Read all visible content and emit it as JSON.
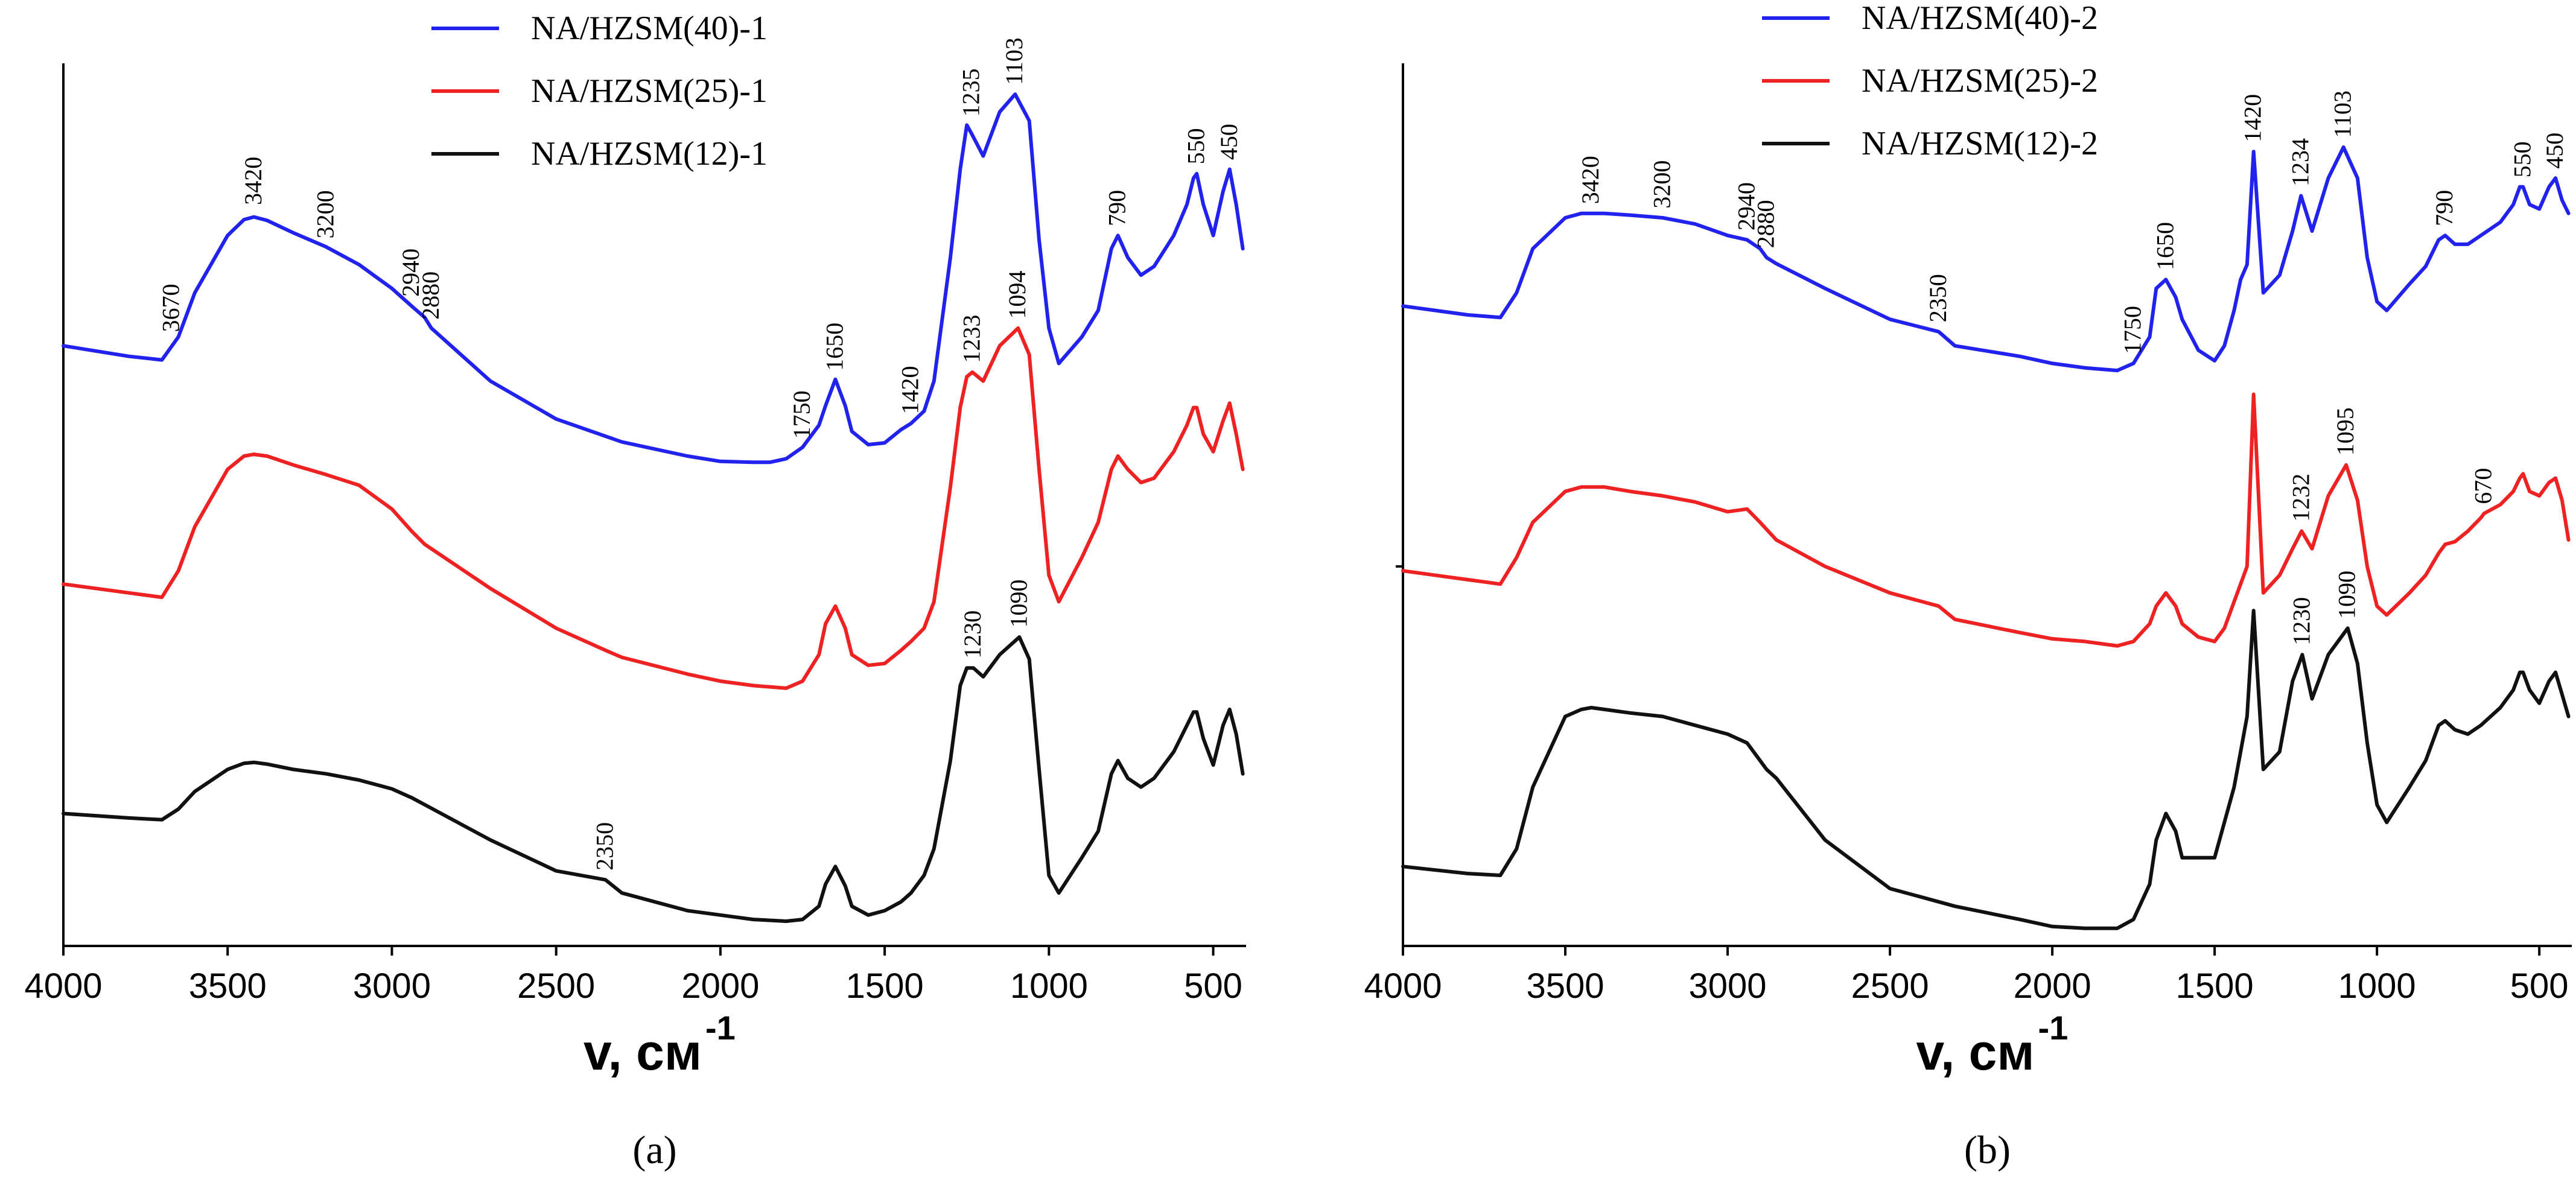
{
  "chart_data": [
    {
      "type": "line",
      "panel_label": "(a)",
      "xlabel": "v, см",
      "xlabel_sup": "-1",
      "ylabel": "",
      "xlim": [
        4000,
        400
      ],
      "xticks": [
        4000,
        3500,
        3000,
        2500,
        2000,
        1500,
        1000,
        500
      ],
      "xtick_labels": [
        "4000",
        "3500",
        "3000",
        "2500",
        "2000",
        "1500",
        "1000",
        "500"
      ],
      "ylim": [
        0,
        1
      ],
      "grid": false,
      "legend_position": "top",
      "series": [
        {
          "name": "NA/HZSM(40)-1",
          "color": "#2222ee",
          "x": [
            4000,
            3800,
            3700,
            3650,
            3600,
            3500,
            3450,
            3420,
            3380,
            3300,
            3200,
            3100,
            3000,
            2940,
            2900,
            2880,
            2850,
            2700,
            2500,
            2300,
            2100,
            2000,
            1900,
            1850,
            1800,
            1750,
            1700,
            1680,
            1650,
            1620,
            1600,
            1550,
            1500,
            1450,
            1420,
            1380,
            1350,
            1300,
            1270,
            1250,
            1235,
            1200,
            1150,
            1103,
            1060,
            1030,
            1000,
            970,
            900,
            850,
            810,
            790,
            760,
            720,
            680,
            620,
            580,
            560,
            550,
            530,
            500,
            470,
            450,
            430,
            410
          ],
          "y": [
            0.68,
            0.668,
            0.664,
            0.69,
            0.74,
            0.805,
            0.823,
            0.826,
            0.822,
            0.808,
            0.792,
            0.772,
            0.745,
            0.725,
            0.712,
            0.7,
            0.69,
            0.64,
            0.597,
            0.571,
            0.555,
            0.549,
            0.548,
            0.548,
            0.552,
            0.565,
            0.59,
            0.612,
            0.642,
            0.612,
            0.583,
            0.568,
            0.57,
            0.585,
            0.592,
            0.606,
            0.64,
            0.78,
            0.88,
            0.93,
            0.92,
            0.895,
            0.945,
            0.965,
            0.935,
            0.8,
            0.7,
            0.66,
            0.69,
            0.72,
            0.79,
            0.805,
            0.78,
            0.76,
            0.77,
            0.805,
            0.84,
            0.87,
            0.875,
            0.84,
            0.805,
            0.855,
            0.88,
            0.84,
            0.79
          ]
        },
        {
          "name": "NA/HZSM(25)-1",
          "color": "#ee2222",
          "x": [
            4000,
            3800,
            3700,
            3650,
            3600,
            3500,
            3450,
            3420,
            3380,
            3300,
            3200,
            3100,
            3000,
            2940,
            2900,
            2700,
            2500,
            2350,
            2300,
            2100,
            2000,
            1900,
            1800,
            1750,
            1700,
            1680,
            1650,
            1620,
            1600,
            1550,
            1500,
            1450,
            1420,
            1380,
            1350,
            1300,
            1270,
            1250,
            1233,
            1200,
            1150,
            1094,
            1060,
            1030,
            1000,
            970,
            900,
            850,
            810,
            790,
            760,
            720,
            680,
            620,
            580,
            560,
            550,
            530,
            500,
            470,
            450,
            430,
            410
          ],
          "y": [
            0.41,
            0.4,
            0.395,
            0.425,
            0.475,
            0.54,
            0.555,
            0.557,
            0.555,
            0.545,
            0.534,
            0.522,
            0.495,
            0.47,
            0.455,
            0.405,
            0.36,
            0.335,
            0.327,
            0.308,
            0.3,
            0.295,
            0.292,
            0.3,
            0.33,
            0.365,
            0.385,
            0.36,
            0.33,
            0.318,
            0.32,
            0.335,
            0.345,
            0.36,
            0.39,
            0.52,
            0.61,
            0.645,
            0.65,
            0.64,
            0.68,
            0.7,
            0.67,
            0.54,
            0.42,
            0.39,
            0.44,
            0.48,
            0.54,
            0.555,
            0.54,
            0.525,
            0.53,
            0.56,
            0.59,
            0.61,
            0.61,
            0.58,
            0.56,
            0.595,
            0.615,
            0.58,
            0.54
          ]
        },
        {
          "name": "NA/HZSM(12)-1",
          "color": "#111111",
          "x": [
            4000,
            3800,
            3700,
            3650,
            3600,
            3500,
            3450,
            3420,
            3380,
            3300,
            3200,
            3100,
            3000,
            2940,
            2900,
            2700,
            2500,
            2350,
            2300,
            2100,
            2000,
            1900,
            1800,
            1750,
            1700,
            1680,
            1650,
            1620,
            1600,
            1550,
            1500,
            1450,
            1420,
            1380,
            1350,
            1300,
            1270,
            1250,
            1230,
            1200,
            1150,
            1090,
            1060,
            1030,
            1000,
            970,
            900,
            850,
            810,
            790,
            760,
            720,
            680,
            620,
            580,
            560,
            550,
            530,
            500,
            470,
            450,
            430,
            410
          ],
          "y": [
            0.15,
            0.145,
            0.143,
            0.155,
            0.175,
            0.2,
            0.207,
            0.208,
            0.206,
            0.2,
            0.195,
            0.188,
            0.178,
            0.168,
            0.16,
            0.12,
            0.085,
            0.075,
            0.06,
            0.04,
            0.035,
            0.03,
            0.028,
            0.03,
            0.045,
            0.07,
            0.09,
            0.068,
            0.045,
            0.035,
            0.04,
            0.05,
            0.06,
            0.08,
            0.11,
            0.21,
            0.295,
            0.315,
            0.315,
            0.305,
            0.33,
            0.35,
            0.325,
            0.2,
            0.08,
            0.06,
            0.1,
            0.13,
            0.195,
            0.21,
            0.19,
            0.18,
            0.19,
            0.22,
            0.25,
            0.265,
            0.265,
            0.235,
            0.205,
            0.25,
            0.268,
            0.24,
            0.195
          ]
        }
      ],
      "annotations": [
        {
          "text": "3670",
          "x": 3670,
          "y": 0.686
        },
        {
          "text": "3420",
          "x": 3420,
          "y": 0.83
        },
        {
          "text": "3200",
          "x": 3200,
          "y": 0.792
        },
        {
          "text": "2940",
          "x": 2940,
          "y": 0.726
        },
        {
          "text": "2880",
          "x": 2880,
          "y": 0.7
        },
        {
          "text": "1750",
          "x": 1750,
          "y": 0.565
        },
        {
          "text": "1650",
          "x": 1650,
          "y": 0.642
        },
        {
          "text": "1420",
          "x": 1420,
          "y": 0.593
        },
        {
          "text": "1235",
          "x": 1235,
          "y": 0.93
        },
        {
          "text": "1103",
          "x": 1103,
          "y": 0.966
        },
        {
          "text": "790",
          "x": 790,
          "y": 0.806
        },
        {
          "text": "550",
          "x": 550,
          "y": 0.876
        },
        {
          "text": "450",
          "x": 450,
          "y": 0.881
        },
        {
          "text": "1233",
          "x": 1233,
          "y": 0.651
        },
        {
          "text": "1094",
          "x": 1094,
          "y": 0.701
        },
        {
          "text": "1230",
          "x": 1230,
          "y": 0.316
        },
        {
          "text": "1090",
          "x": 1090,
          "y": 0.351
        },
        {
          "text": "2350",
          "x": 2350,
          "y": 0.076
        }
      ]
    },
    {
      "type": "line",
      "panel_label": "(b)",
      "xlabel": "v, см",
      "xlabel_sup": "-1",
      "ylabel": "",
      "xlim": [
        4000,
        400
      ],
      "xticks": [
        4000,
        3500,
        3000,
        2500,
        2000,
        1500,
        1000,
        500
      ],
      "xtick_labels": [
        "4000",
        "3500",
        "3000",
        "2500",
        "2000",
        "1500",
        "1000",
        "500"
      ],
      "ylim": [
        0,
        1
      ],
      "grid": false,
      "legend_position": "top",
      "series": [
        {
          "name": "NA/HZSM(40)-2",
          "color": "#2222ee",
          "x": [
            4000,
            3800,
            3700,
            3650,
            3600,
            3500,
            3450,
            3420,
            3380,
            3300,
            3200,
            3100,
            3000,
            2940,
            2900,
            2880,
            2850,
            2700,
            2500,
            2350,
            2300,
            2100,
            2000,
            1900,
            1800,
            1750,
            1700,
            1680,
            1650,
            1620,
            1600,
            1550,
            1500,
            1470,
            1440,
            1420,
            1400,
            1380,
            1350,
            1300,
            1260,
            1234,
            1200,
            1150,
            1103,
            1060,
            1030,
            1000,
            970,
            900,
            850,
            810,
            790,
            760,
            720,
            680,
            620,
            580,
            560,
            550,
            530,
            500,
            470,
            450,
            430,
            410
          ],
          "y": [
            0.725,
            0.715,
            0.712,
            0.74,
            0.79,
            0.825,
            0.83,
            0.83,
            0.83,
            0.828,
            0.825,
            0.818,
            0.805,
            0.8,
            0.79,
            0.78,
            0.773,
            0.745,
            0.71,
            0.696,
            0.68,
            0.668,
            0.66,
            0.655,
            0.652,
            0.66,
            0.69,
            0.745,
            0.755,
            0.735,
            0.71,
            0.675,
            0.663,
            0.68,
            0.72,
            0.755,
            0.772,
            0.9,
            0.74,
            0.76,
            0.81,
            0.85,
            0.81,
            0.87,
            0.905,
            0.87,
            0.78,
            0.73,
            0.72,
            0.75,
            0.77,
            0.8,
            0.805,
            0.795,
            0.795,
            0.805,
            0.82,
            0.84,
            0.86,
            0.86,
            0.84,
            0.835,
            0.86,
            0.87,
            0.845,
            0.83
          ]
        },
        {
          "name": "NA/HZSM(25)-2",
          "color": "#ee2222",
          "x": [
            4000,
            3800,
            3700,
            3650,
            3600,
            3500,
            3450,
            3420,
            3380,
            3300,
            3200,
            3100,
            3000,
            2940,
            2900,
            2880,
            2850,
            2700,
            2500,
            2350,
            2300,
            2100,
            2000,
            1900,
            1800,
            1750,
            1700,
            1680,
            1650,
            1620,
            1600,
            1550,
            1500,
            1470,
            1440,
            1420,
            1400,
            1380,
            1350,
            1300,
            1260,
            1232,
            1200,
            1150,
            1095,
            1060,
            1030,
            1000,
            970,
            900,
            850,
            810,
            790,
            760,
            720,
            680,
            670,
            620,
            580,
            560,
            550,
            530,
            500,
            470,
            450,
            430,
            410
          ],
          "y": [
            0.425,
            0.415,
            0.41,
            0.44,
            0.48,
            0.515,
            0.52,
            0.52,
            0.52,
            0.515,
            0.51,
            0.503,
            0.492,
            0.495,
            0.48,
            0.472,
            0.46,
            0.43,
            0.4,
            0.385,
            0.37,
            0.355,
            0.348,
            0.345,
            0.34,
            0.345,
            0.365,
            0.385,
            0.4,
            0.385,
            0.365,
            0.35,
            0.345,
            0.36,
            0.39,
            0.41,
            0.43,
            0.625,
            0.4,
            0.42,
            0.45,
            0.47,
            0.45,
            0.51,
            0.545,
            0.505,
            0.43,
            0.385,
            0.375,
            0.4,
            0.42,
            0.445,
            0.455,
            0.458,
            0.47,
            0.485,
            0.49,
            0.5,
            0.515,
            0.53,
            0.535,
            0.515,
            0.51,
            0.525,
            0.53,
            0.505,
            0.46
          ]
        },
        {
          "name": "NA/HZSM(12)-2",
          "color": "#111111",
          "x": [
            4000,
            3800,
            3700,
            3650,
            3600,
            3500,
            3450,
            3420,
            3380,
            3300,
            3200,
            3100,
            3000,
            2940,
            2900,
            2880,
            2850,
            2700,
            2500,
            2350,
            2300,
            2100,
            2000,
            1900,
            1800,
            1750,
            1700,
            1680,
            1650,
            1620,
            1600,
            1550,
            1500,
            1470,
            1440,
            1420,
            1400,
            1380,
            1350,
            1300,
            1260,
            1230,
            1200,
            1150,
            1090,
            1060,
            1030,
            1000,
            970,
            900,
            850,
            810,
            790,
            760,
            720,
            680,
            620,
            580,
            560,
            550,
            530,
            500,
            470,
            450,
            430,
            410
          ],
          "y": [
            0.09,
            0.082,
            0.08,
            0.11,
            0.18,
            0.26,
            0.268,
            0.27,
            0.268,
            0.264,
            0.26,
            0.25,
            0.24,
            0.23,
            0.21,
            0.2,
            0.19,
            0.12,
            0.065,
            0.05,
            0.045,
            0.03,
            0.022,
            0.02,
            0.02,
            0.03,
            0.07,
            0.12,
            0.15,
            0.13,
            0.1,
            0.1,
            0.1,
            0.14,
            0.18,
            0.22,
            0.26,
            0.38,
            0.2,
            0.22,
            0.3,
            0.33,
            0.28,
            0.33,
            0.36,
            0.32,
            0.23,
            0.16,
            0.14,
            0.18,
            0.21,
            0.25,
            0.255,
            0.245,
            0.24,
            0.25,
            0.27,
            0.29,
            0.31,
            0.31,
            0.29,
            0.275,
            0.3,
            0.31,
            0.285,
            0.26
          ]
        }
      ],
      "annotations": [
        {
          "text": "3420",
          "x": 3420,
          "y": 0.831
        },
        {
          "text": "3200",
          "x": 3200,
          "y": 0.826
        },
        {
          "text": "2940",
          "x": 2940,
          "y": 0.801
        },
        {
          "text": "2880",
          "x": 2880,
          "y": 0.781
        },
        {
          "text": "2350",
          "x": 2350,
          "y": 0.697
        },
        {
          "text": "1750",
          "x": 1750,
          "y": 0.661
        },
        {
          "text": "1650",
          "x": 1650,
          "y": 0.756
        },
        {
          "text": "1420",
          "x": 1380,
          "y": 0.901
        },
        {
          "text": "1234",
          "x": 1234,
          "y": 0.851
        },
        {
          "text": "1103",
          "x": 1103,
          "y": 0.906
        },
        {
          "text": "790",
          "x": 790,
          "y": 0.806
        },
        {
          "text": "550",
          "x": 550,
          "y": 0.861
        },
        {
          "text": "450",
          "x": 450,
          "y": 0.871
        },
        {
          "text": "1232",
          "x": 1232,
          "y": 0.471
        },
        {
          "text": "1095",
          "x": 1095,
          "y": 0.546
        },
        {
          "text": "670",
          "x": 670,
          "y": 0.491
        },
        {
          "text": "1230",
          "x": 1230,
          "y": 0.331
        },
        {
          "text": "1090",
          "x": 1090,
          "y": 0.361
        }
      ]
    }
  ]
}
